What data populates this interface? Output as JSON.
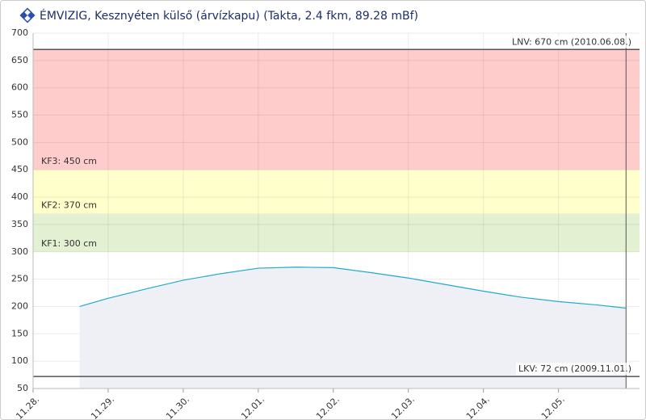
{
  "chart_data": {
    "type": "area",
    "title": "ÉMVIZIG, Kesznyéten külső (árvízkapu) (Takta, 2.4 fkm, 89.28 mBf)",
    "x": [
      0.62,
      1.0,
      1.5,
      2.0,
      2.5,
      3.0,
      3.5,
      4.0,
      4.5,
      5.0,
      5.5,
      6.0,
      6.5,
      7.0,
      7.5,
      7.9
    ],
    "values": [
      200,
      215,
      232,
      248,
      260,
      270,
      272,
      271,
      262,
      252,
      240,
      228,
      217,
      209,
      203,
      197
    ],
    "color": "#22aacc",
    "xlim": [
      0,
      8.08
    ],
    "xticks": [
      {
        "value": 0,
        "label": "11.28."
      },
      {
        "value": 1,
        "label": "11.29."
      },
      {
        "value": 2,
        "label": "11.30."
      },
      {
        "value": 3,
        "label": "12.01."
      },
      {
        "value": 4,
        "label": "12.02."
      },
      {
        "value": 5,
        "label": "12.03."
      },
      {
        "value": 6,
        "label": "12.04."
      },
      {
        "value": 7,
        "label": "12.05."
      }
    ],
    "ylim": [
      50,
      700
    ],
    "yticks": [
      50,
      100,
      150,
      200,
      250,
      300,
      350,
      400,
      450,
      500,
      550,
      600,
      650,
      700
    ],
    "grid": true,
    "bands": [
      {
        "from": 450,
        "to": 670,
        "label": "KF3: 450 cm",
        "color": "#ffcccc"
      },
      {
        "from": 370,
        "to": 450,
        "label": "KF2: 370 cm",
        "color": "#ffffcc"
      },
      {
        "from": 300,
        "to": 370,
        "label": "KF1: 300 cm",
        "color": "#e4f0d2"
      }
    ],
    "reference_lines": [
      {
        "value": 670,
        "label": "LNV: 670 cm (2010.06.08.)"
      },
      {
        "value": 72,
        "label": "LKV: 72 cm (2009.11.01.)"
      }
    ]
  }
}
